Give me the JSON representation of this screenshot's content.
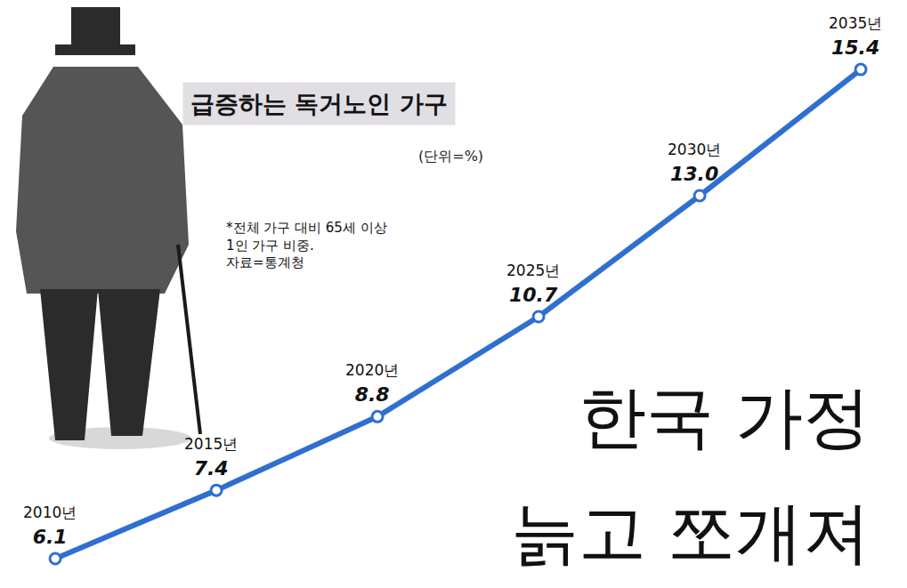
{
  "chart_data": {
    "type": "line",
    "title": "급증하는 독거노인 가구",
    "subtitle": "(단위=%)",
    "note": [
      "*전체 가구 대비 65세 이상",
      "1인 가구 비중.",
      "자료=통계청"
    ],
    "headline": [
      "한국 가정",
      "늙고 쪼개져"
    ],
    "categories": [
      "2010년",
      "2015년",
      "2020년",
      "2025년",
      "2030년",
      "2035년"
    ],
    "values": [
      6.1,
      7.4,
      8.8,
      10.7,
      13.0,
      15.4
    ],
    "value_labels": [
      "6.1",
      "7.4",
      "8.8",
      "10.7",
      "13.0",
      "15.4"
    ],
    "color": "#2f6fd0",
    "marker": "circle",
    "data_labels": true,
    "tick_labels": false,
    "grid": false
  }
}
